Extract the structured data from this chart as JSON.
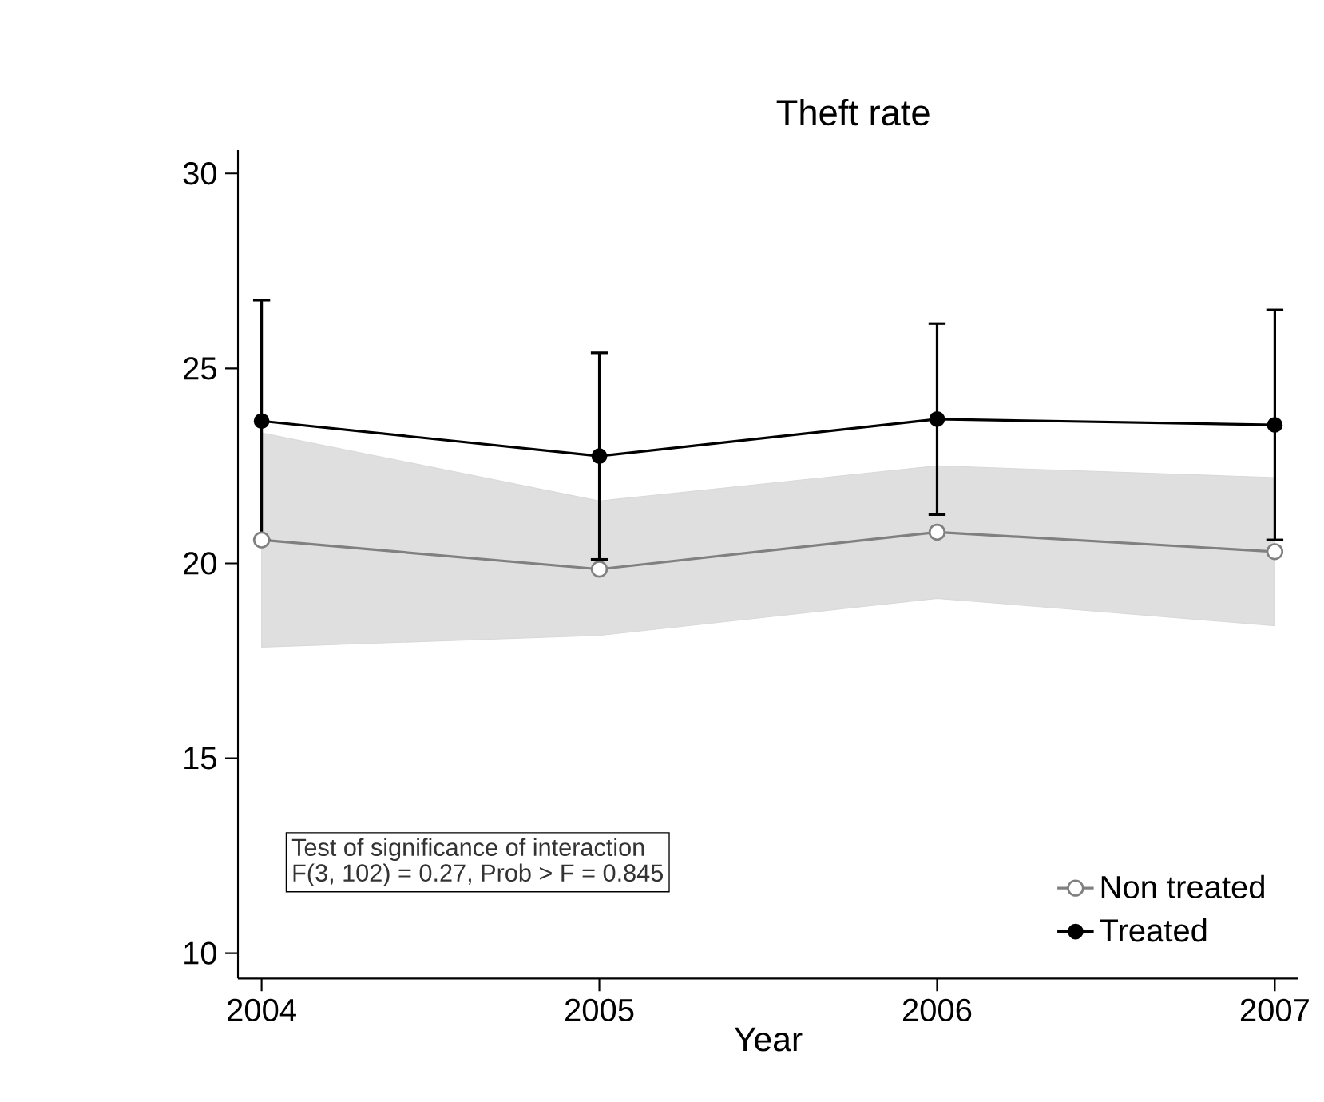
{
  "chart_data": {
    "type": "line",
    "title": "Theft rate",
    "xlabel": "Year",
    "x": [
      2004,
      2005,
      2006,
      2007
    ],
    "xlim": [
      2003.93,
      2007.07
    ],
    "xticks": [
      2004,
      2005,
      2006,
      2007
    ],
    "ylim": [
      9.35,
      30.6
    ],
    "yticks": [
      10,
      15,
      20,
      25,
      30
    ],
    "marker": "circle",
    "line_style": "solid",
    "legend": "bottom right",
    "grid": false,
    "annotations": [
      "Test of significance of interaction",
      "F(3, 102) = 0.27,  Prob > F = 0.845"
    ],
    "series": [
      {
        "name": "Non treated",
        "color": "#808080",
        "values": [
          20.6,
          19.85,
          20.8,
          20.3
        ],
        "lower": [
          17.85,
          18.15,
          19.1,
          18.4
        ],
        "upper": [
          23.35,
          21.6,
          22.5,
          22.2
        ]
      },
      {
        "name": "Treated",
        "color": "#000000",
        "values": [
          23.65,
          22.75,
          23.7,
          23.55
        ],
        "errors": [
          [
            20.6,
            26.75
          ],
          [
            20.1,
            25.4
          ],
          [
            21.25,
            26.15
          ],
          [
            20.6,
            26.5
          ]
        ]
      }
    ]
  }
}
